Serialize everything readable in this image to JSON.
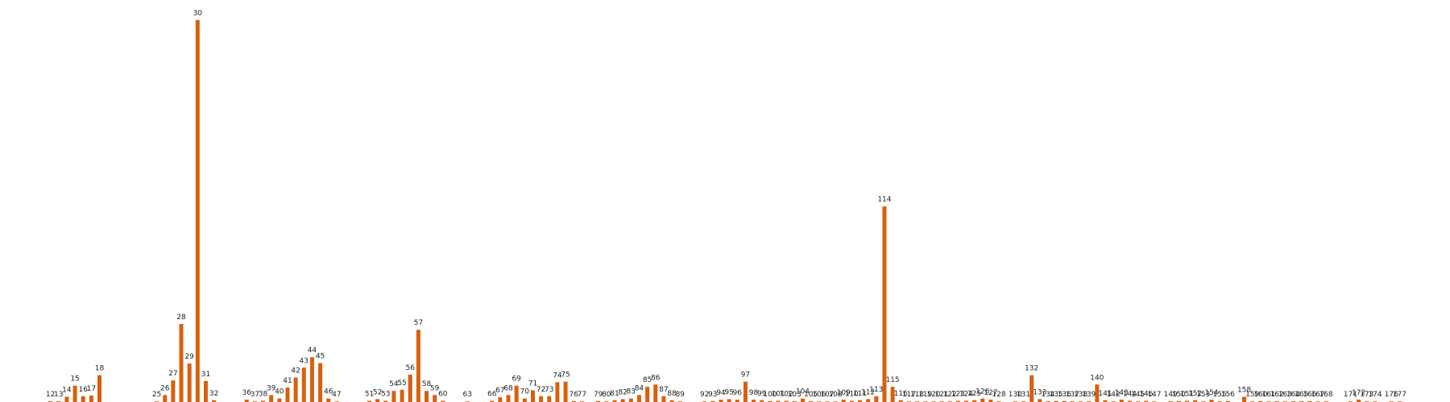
{
  "chart_data": {
    "type": "bar",
    "title": "",
    "xlabel": "",
    "ylabel": "",
    "grid": false,
    "axes_visible": false,
    "color": "#d95f0e",
    "ylim": [
      0,
      33
    ],
    "xlim": [
      8,
      181
    ],
    "points": [
      {
        "x": 12,
        "label": "12",
        "value": 0.06
      },
      {
        "x": 13,
        "label": "13",
        "value": 0.06
      },
      {
        "x": 14,
        "label": "14",
        "value": 0.45
      },
      {
        "x": 15,
        "label": "15",
        "value": 1.4
      },
      {
        "x": 16,
        "label": "16",
        "value": 0.5
      },
      {
        "x": 17,
        "label": "17",
        "value": 0.55
      },
      {
        "x": 18,
        "label": "18",
        "value": 2.3
      },
      {
        "x": 25,
        "label": "25",
        "value": 0.05
      },
      {
        "x": 26,
        "label": "26",
        "value": 0.6
      },
      {
        "x": 27,
        "label": "27",
        "value": 1.85
      },
      {
        "x": 28,
        "label": "28",
        "value": 6.7
      },
      {
        "x": 29,
        "label": "29",
        "value": 3.3
      },
      {
        "x": 30,
        "label": "30",
        "value": 32.8
      },
      {
        "x": 31,
        "label": "31",
        "value": 1.8
      },
      {
        "x": 32,
        "label": "32",
        "value": 0.15
      },
      {
        "x": 36,
        "label": "36",
        "value": 0.2
      },
      {
        "x": 37,
        "label": "37",
        "value": 0.03
      },
      {
        "x": 38,
        "label": "38",
        "value": 0.1
      },
      {
        "x": 39,
        "label": "39",
        "value": 0.6
      },
      {
        "x": 40,
        "label": "40",
        "value": 0.3
      },
      {
        "x": 41,
        "label": "41",
        "value": 1.25
      },
      {
        "x": 42,
        "label": "42",
        "value": 2.1
      },
      {
        "x": 43,
        "label": "43",
        "value": 2.95
      },
      {
        "x": 44,
        "label": "44",
        "value": 3.85
      },
      {
        "x": 45,
        "label": "45",
        "value": 3.35
      },
      {
        "x": 46,
        "label": "46",
        "value": 0.3
      },
      {
        "x": 47,
        "label": "47",
        "value": 0.03
      },
      {
        "x": 51,
        "label": "51",
        "value": 0.1
      },
      {
        "x": 52,
        "label": "52",
        "value": 0.25
      },
      {
        "x": 53,
        "label": "53",
        "value": 0.1
      },
      {
        "x": 54,
        "label": "54",
        "value": 0.95
      },
      {
        "x": 55,
        "label": "55",
        "value": 1.05
      },
      {
        "x": 56,
        "label": "56",
        "value": 2.35
      },
      {
        "x": 57,
        "label": "57",
        "value": 6.2
      },
      {
        "x": 58,
        "label": "58",
        "value": 0.95
      },
      {
        "x": 59,
        "label": "59",
        "value": 0.6
      },
      {
        "x": 60,
        "label": "60",
        "value": 0.1
      },
      {
        "x": 63,
        "label": "63",
        "value": 0.02
      },
      {
        "x": 66,
        "label": "66",
        "value": 0.1
      },
      {
        "x": 67,
        "label": "67",
        "value": 0.4
      },
      {
        "x": 68,
        "label": "68",
        "value": 0.6
      },
      {
        "x": 69,
        "label": "69",
        "value": 1.4
      },
      {
        "x": 70,
        "label": "70",
        "value": 0.3
      },
      {
        "x": 71,
        "label": "71",
        "value": 1.0
      },
      {
        "x": 72,
        "label": "72",
        "value": 0.5
      },
      {
        "x": 73,
        "label": "73",
        "value": 0.5
      },
      {
        "x": 74,
        "label": "74",
        "value": 1.7
      },
      {
        "x": 75,
        "label": "75",
        "value": 1.75
      },
      {
        "x": 76,
        "label": "76",
        "value": 0.08
      },
      {
        "x": 77,
        "label": "77",
        "value": 0.02
      },
      {
        "x": 79,
        "label": "79",
        "value": 0.08
      },
      {
        "x": 80,
        "label": "80",
        "value": 0.06
      },
      {
        "x": 81,
        "label": "81",
        "value": 0.15
      },
      {
        "x": 82,
        "label": "82",
        "value": 0.25
      },
      {
        "x": 83,
        "label": "83",
        "value": 0.3
      },
      {
        "x": 84,
        "label": "84",
        "value": 0.6
      },
      {
        "x": 85,
        "label": "85",
        "value": 1.3
      },
      {
        "x": 86,
        "label": "86",
        "value": 1.5
      },
      {
        "x": 87,
        "label": "87",
        "value": 0.5
      },
      {
        "x": 88,
        "label": "88",
        "value": 0.15
      },
      {
        "x": 89,
        "label": "89",
        "value": 0.05
      },
      {
        "x": 92,
        "label": "92",
        "value": 0.06
      },
      {
        "x": 93,
        "label": "93",
        "value": 0.08
      },
      {
        "x": 94,
        "label": "94",
        "value": 0.2
      },
      {
        "x": 95,
        "label": "95",
        "value": 0.25
      },
      {
        "x": 96,
        "label": "96",
        "value": 0.2
      },
      {
        "x": 97,
        "label": "97",
        "value": 1.75
      },
      {
        "x": 98,
        "label": "98",
        "value": 0.2
      },
      {
        "x": 99,
        "label": "99",
        "value": 0.15
      },
      {
        "x": 100,
        "label": "100",
        "value": 0.08
      },
      {
        "x": 101,
        "label": "101",
        "value": 0.1
      },
      {
        "x": 102,
        "label": "102",
        "value": 0.1
      },
      {
        "x": 103,
        "label": "103",
        "value": 0.06
      },
      {
        "x": 104,
        "label": "104",
        "value": 0.3
      },
      {
        "x": 105,
        "label": "105",
        "value": 0.06
      },
      {
        "x": 106,
        "label": "106",
        "value": 0.05
      },
      {
        "x": 107,
        "label": "107",
        "value": 0.05
      },
      {
        "x": 108,
        "label": "108",
        "value": 0.05
      },
      {
        "x": 109,
        "label": "109",
        "value": 0.2
      },
      {
        "x": 110,
        "label": "110",
        "value": 0.1
      },
      {
        "x": 111,
        "label": "111",
        "value": 0.15
      },
      {
        "x": 112,
        "label": "112",
        "value": 0.25
      },
      {
        "x": 113,
        "label": "113",
        "value": 0.5
      },
      {
        "x": 114,
        "label": "114",
        "value": 16.8
      },
      {
        "x": 115,
        "label": "115",
        "value": 1.3
      },
      {
        "x": 116,
        "label": "116",
        "value": 0.15
      },
      {
        "x": 117,
        "label": "117",
        "value": 0.05
      },
      {
        "x": 118,
        "label": "118",
        "value": 0.04
      },
      {
        "x": 119,
        "label": "119",
        "value": 0.03
      },
      {
        "x": 120,
        "label": "120",
        "value": 0.05
      },
      {
        "x": 121,
        "label": "121",
        "value": 0.06
      },
      {
        "x": 122,
        "label": "122",
        "value": 0.06
      },
      {
        "x": 123,
        "label": "123",
        "value": 0.1
      },
      {
        "x": 124,
        "label": "124",
        "value": 0.1
      },
      {
        "x": 125,
        "label": "125",
        "value": 0.15
      },
      {
        "x": 126,
        "label": "126",
        "value": 0.3
      },
      {
        "x": 127,
        "label": "127",
        "value": 0.2
      },
      {
        "x": 128,
        "label": "128",
        "value": 0.03
      },
      {
        "x": 130,
        "label": "130",
        "value": 0.04
      },
      {
        "x": 131,
        "label": "131",
        "value": 0.06
      },
      {
        "x": 132,
        "label": "132",
        "value": 2.3
      },
      {
        "x": 133,
        "label": "133",
        "value": 0.25
      },
      {
        "x": 134,
        "label": "134",
        "value": 0.06
      },
      {
        "x": 135,
        "label": "135",
        "value": 0.08
      },
      {
        "x": 136,
        "label": "136",
        "value": 0.08
      },
      {
        "x": 137,
        "label": "137",
        "value": 0.06
      },
      {
        "x": 138,
        "label": "138",
        "value": 0.04
      },
      {
        "x": 139,
        "label": "139",
        "value": 0.06
      },
      {
        "x": 140,
        "label": "140",
        "value": 1.5
      },
      {
        "x": 141,
        "label": "141",
        "value": 0.15
      },
      {
        "x": 142,
        "label": "142",
        "value": 0.03
      },
      {
        "x": 143,
        "label": "143",
        "value": 0.2
      },
      {
        "x": 144,
        "label": "144",
        "value": 0.1
      },
      {
        "x": 145,
        "label": "145",
        "value": 0.03
      },
      {
        "x": 146,
        "label": "146",
        "value": 0.1
      },
      {
        "x": 147,
        "label": "147",
        "value": 0.03
      },
      {
        "x": 149,
        "label": "149",
        "value": 0.06
      },
      {
        "x": 150,
        "label": "150",
        "value": 0.08
      },
      {
        "x": 151,
        "label": "151",
        "value": 0.1
      },
      {
        "x": 152,
        "label": "152",
        "value": 0.15
      },
      {
        "x": 153,
        "label": "153",
        "value": 0.06
      },
      {
        "x": 154,
        "label": "154",
        "value": 0.2
      },
      {
        "x": 155,
        "label": "155",
        "value": 0.06
      },
      {
        "x": 156,
        "label": "156",
        "value": 0.08
      },
      {
        "x": 158,
        "label": "158",
        "value": 0.45
      },
      {
        "x": 159,
        "label": "159",
        "value": 0.03
      },
      {
        "x": 160,
        "label": "160",
        "value": 0.08
      },
      {
        "x": 161,
        "label": "161",
        "value": 0.03
      },
      {
        "x": 162,
        "label": "162",
        "value": 0.06
      },
      {
        "x": 163,
        "label": "163",
        "value": 0.03
      },
      {
        "x": 164,
        "label": "164",
        "value": 0.06
      },
      {
        "x": 165,
        "label": "165",
        "value": 0.06
      },
      {
        "x": 166,
        "label": "166",
        "value": 0.08
      },
      {
        "x": 167,
        "label": "167",
        "value": 0.04
      },
      {
        "x": 168,
        "label": "168",
        "value": 0.06
      },
      {
        "x": 171,
        "label": "171",
        "value": 0.03
      },
      {
        "x": 172,
        "label": "172",
        "value": 0.2
      },
      {
        "x": 173,
        "label": "173",
        "value": 0.03
      },
      {
        "x": 174,
        "label": "174",
        "value": 0.02
      },
      {
        "x": 176,
        "label": "176",
        "value": 0.02
      },
      {
        "x": 177,
        "label": "177",
        "value": 0.02
      }
    ]
  }
}
